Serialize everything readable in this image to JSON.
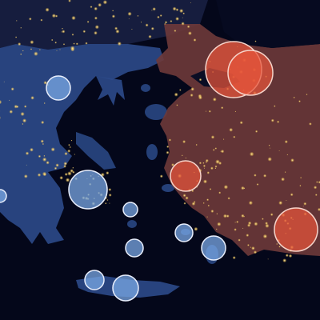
{
  "map": {
    "style": "night-lights satellite basemap",
    "regions": [
      {
        "name": "greece-region",
        "tint": "#3a5a9c"
      },
      {
        "name": "turkey-region",
        "tint": "#b65a48"
      }
    ],
    "marker_groups": [
      {
        "name": "greece-markers",
        "fill": "#7aa8e6",
        "stroke": "#e8eefc"
      },
      {
        "name": "turkey-markers",
        "fill": "#e8553a",
        "stroke": "#f6d3c9"
      }
    ]
  }
}
